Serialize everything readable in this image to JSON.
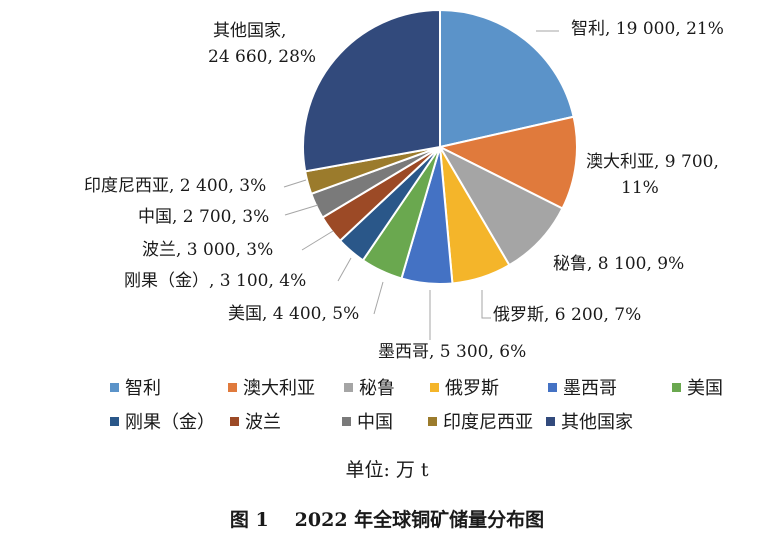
{
  "chart_data": {
    "type": "pie",
    "slices": [
      {
        "name": "智利",
        "value": 19000,
        "percent": "21%",
        "label": "智利, 19 000, 21%",
        "color": "#5b93c9"
      },
      {
        "name": "澳大利亚",
        "value": 9700,
        "percent": "11%",
        "label": "澳大利亚, 9 700, 11%",
        "color": "#e07a3c"
      },
      {
        "name": "秘鲁",
        "value": 8100,
        "percent": "9%",
        "label": "秘鲁, 8 100, 9%",
        "color": "#a5a5a5"
      },
      {
        "name": "俄罗斯",
        "value": 6200,
        "percent": "7%",
        "label": "俄罗斯, 6 200, 7%",
        "color": "#f4b52a"
      },
      {
        "name": "墨西哥",
        "value": 5300,
        "percent": "6%",
        "label": "墨西哥, 5 300, 6%",
        "color": "#4472c4"
      },
      {
        "name": "美国",
        "value": 4400,
        "percent": "5%",
        "label": "美国, 4 400, 5%",
        "color": "#6aa84f"
      },
      {
        "name": "刚果（金）",
        "value": 3100,
        "percent": "4%",
        "label": "刚果（金）, 3 100, 4%",
        "color": "#2a5789"
      },
      {
        "name": "波兰",
        "value": 3000,
        "percent": "3%",
        "label": "波兰, 3 000, 3%",
        "color": "#9c4a26"
      },
      {
        "name": "中国",
        "value": 2700,
        "percent": "3%",
        "label": "中国, 2 700, 3%",
        "color": "#7a7a7a"
      },
      {
        "name": "印度尼西亚",
        "value": 2400,
        "percent": "3%",
        "label": "印度尼西亚, 2 400, 3%",
        "color": "#9b7b2c"
      },
      {
        "name": "其他国家",
        "value": 24660,
        "percent": "28%",
        "label": "其他国家, 24 660, 28%",
        "color": "#324a7c"
      }
    ],
    "legend_position": "bottom"
  },
  "unit_label": "单位: 万 t",
  "caption": {
    "number": "图 1",
    "title": "2022 年全球铜矿储量分布图"
  }
}
